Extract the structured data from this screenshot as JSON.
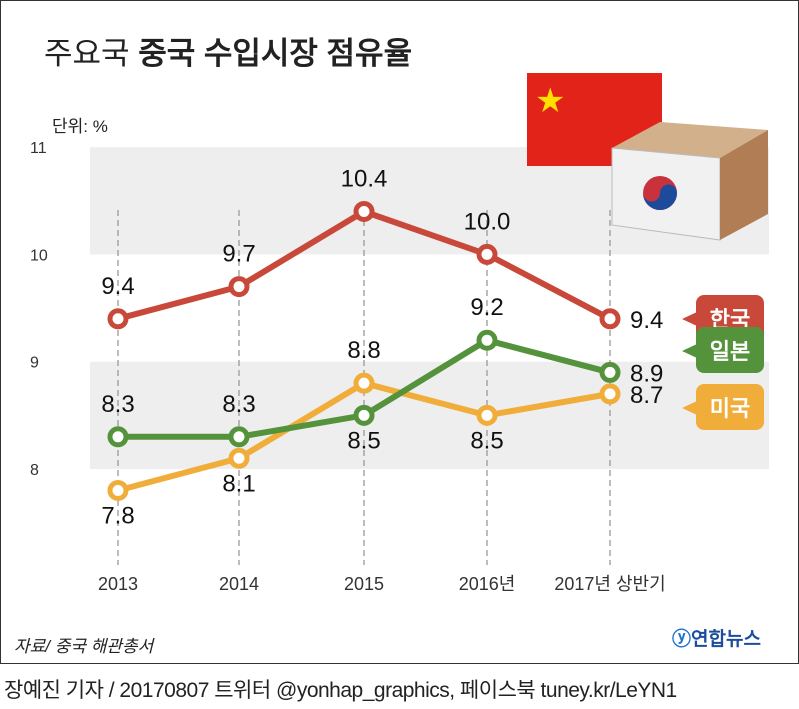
{
  "title_light": "주요국",
  "title_bold": "중국 수입시장 점유율",
  "unit": "단위: %",
  "source": "자료/ 중국 해관총서",
  "logo": "연합뉴스",
  "credit": "장예진 기자 / 20170807 트위터 @yonhap_graphics, 페이스북 tuney.kr/LeYN1",
  "chart_data": {
    "type": "line",
    "title": "주요국 중국 수입시장 점유율",
    "ylabel": "단위: %",
    "ylim": [
      8,
      11
    ],
    "yticks": [
      "8",
      "9",
      "10",
      "11"
    ],
    "categories": [
      "2013",
      "2014",
      "2015",
      "2016년",
      "2017년 상반기"
    ],
    "grid": "alternating bands",
    "legend": "right, callout badges",
    "series": [
      {
        "name": "한국",
        "color": "#c8493a",
        "values": [
          9.4,
          9.7,
          10.4,
          10.0,
          9.4
        ],
        "labels": [
          "9.4",
          "9.7",
          "10.4",
          "10.0",
          "9.4"
        ]
      },
      {
        "name": "일본",
        "color": "#54923c",
        "values": [
          8.3,
          8.3,
          8.5,
          9.2,
          8.9
        ],
        "labels": [
          "8.3",
          "8.3",
          "8.5",
          "9.2",
          "8.9"
        ]
      },
      {
        "name": "미국",
        "color": "#f0ad3a",
        "values": [
          7.8,
          8.1,
          8.8,
          8.5,
          8.7
        ],
        "labels": [
          "7.8",
          "8.1",
          "8.8",
          "8.5",
          "8.7"
        ]
      }
    ]
  }
}
